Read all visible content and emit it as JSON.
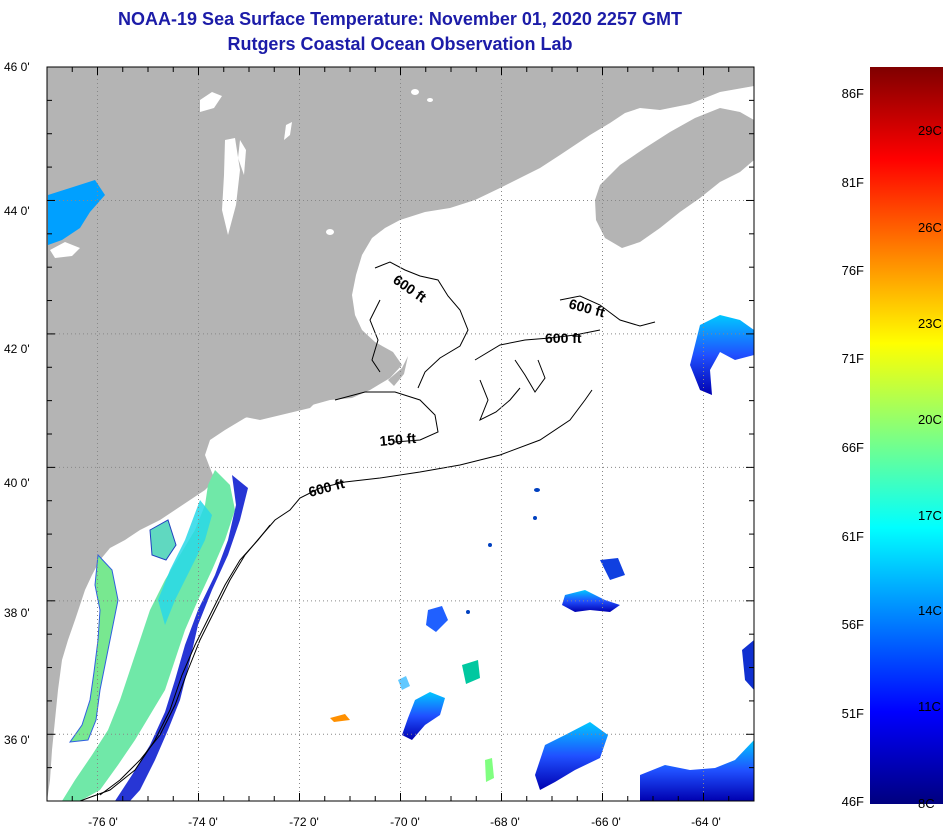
{
  "title": {
    "line1": "NOAA-19 Sea Surface Temperature:  November 01, 2020 2257 GMT",
    "line2": "Rutgers Coastal Ocean Observation Lab"
  },
  "map": {
    "lat_labels": [
      "46 0'",
      "44 0'",
      "42 0'",
      "40 0'",
      "38 0'",
      "36 0'"
    ],
    "lat_values": [
      46,
      44,
      42,
      40,
      38,
      36
    ],
    "lon_labels": [
      "-76 0'",
      "-74 0'",
      "-72 0'",
      "-70 0'",
      "-68 0'",
      "-66 0'",
      "-64 0'"
    ],
    "lon_values": [
      -76,
      -74,
      -72,
      -70,
      -68,
      -66,
      -64
    ],
    "lat_range": [
      35,
      46
    ],
    "lon_range": [
      -77,
      -63
    ],
    "contour_labels": [
      "600 ft",
      "600 ft",
      "600 ft",
      "150 ft",
      "600 ft"
    ],
    "colors": {
      "land": "#b4b4b4",
      "ocean": "#ffffff",
      "title": "#1c1ca8"
    }
  },
  "colorbar": {
    "fahrenheit_labels": [
      "86F",
      "81F",
      "76F",
      "71F",
      "66F",
      "61F",
      "56F",
      "51F",
      "46F"
    ],
    "celsius_labels": [
      "29C",
      "26C",
      "23C",
      "20C",
      "17C",
      "14C",
      "11C",
      "8C"
    ],
    "range_f": [
      46,
      87
    ],
    "stops": [
      "#00007f",
      "#0000ff",
      "#0080ff",
      "#00ffff",
      "#80ff80",
      "#ffff00",
      "#ff8000",
      "#ff0000",
      "#7f0000"
    ]
  }
}
